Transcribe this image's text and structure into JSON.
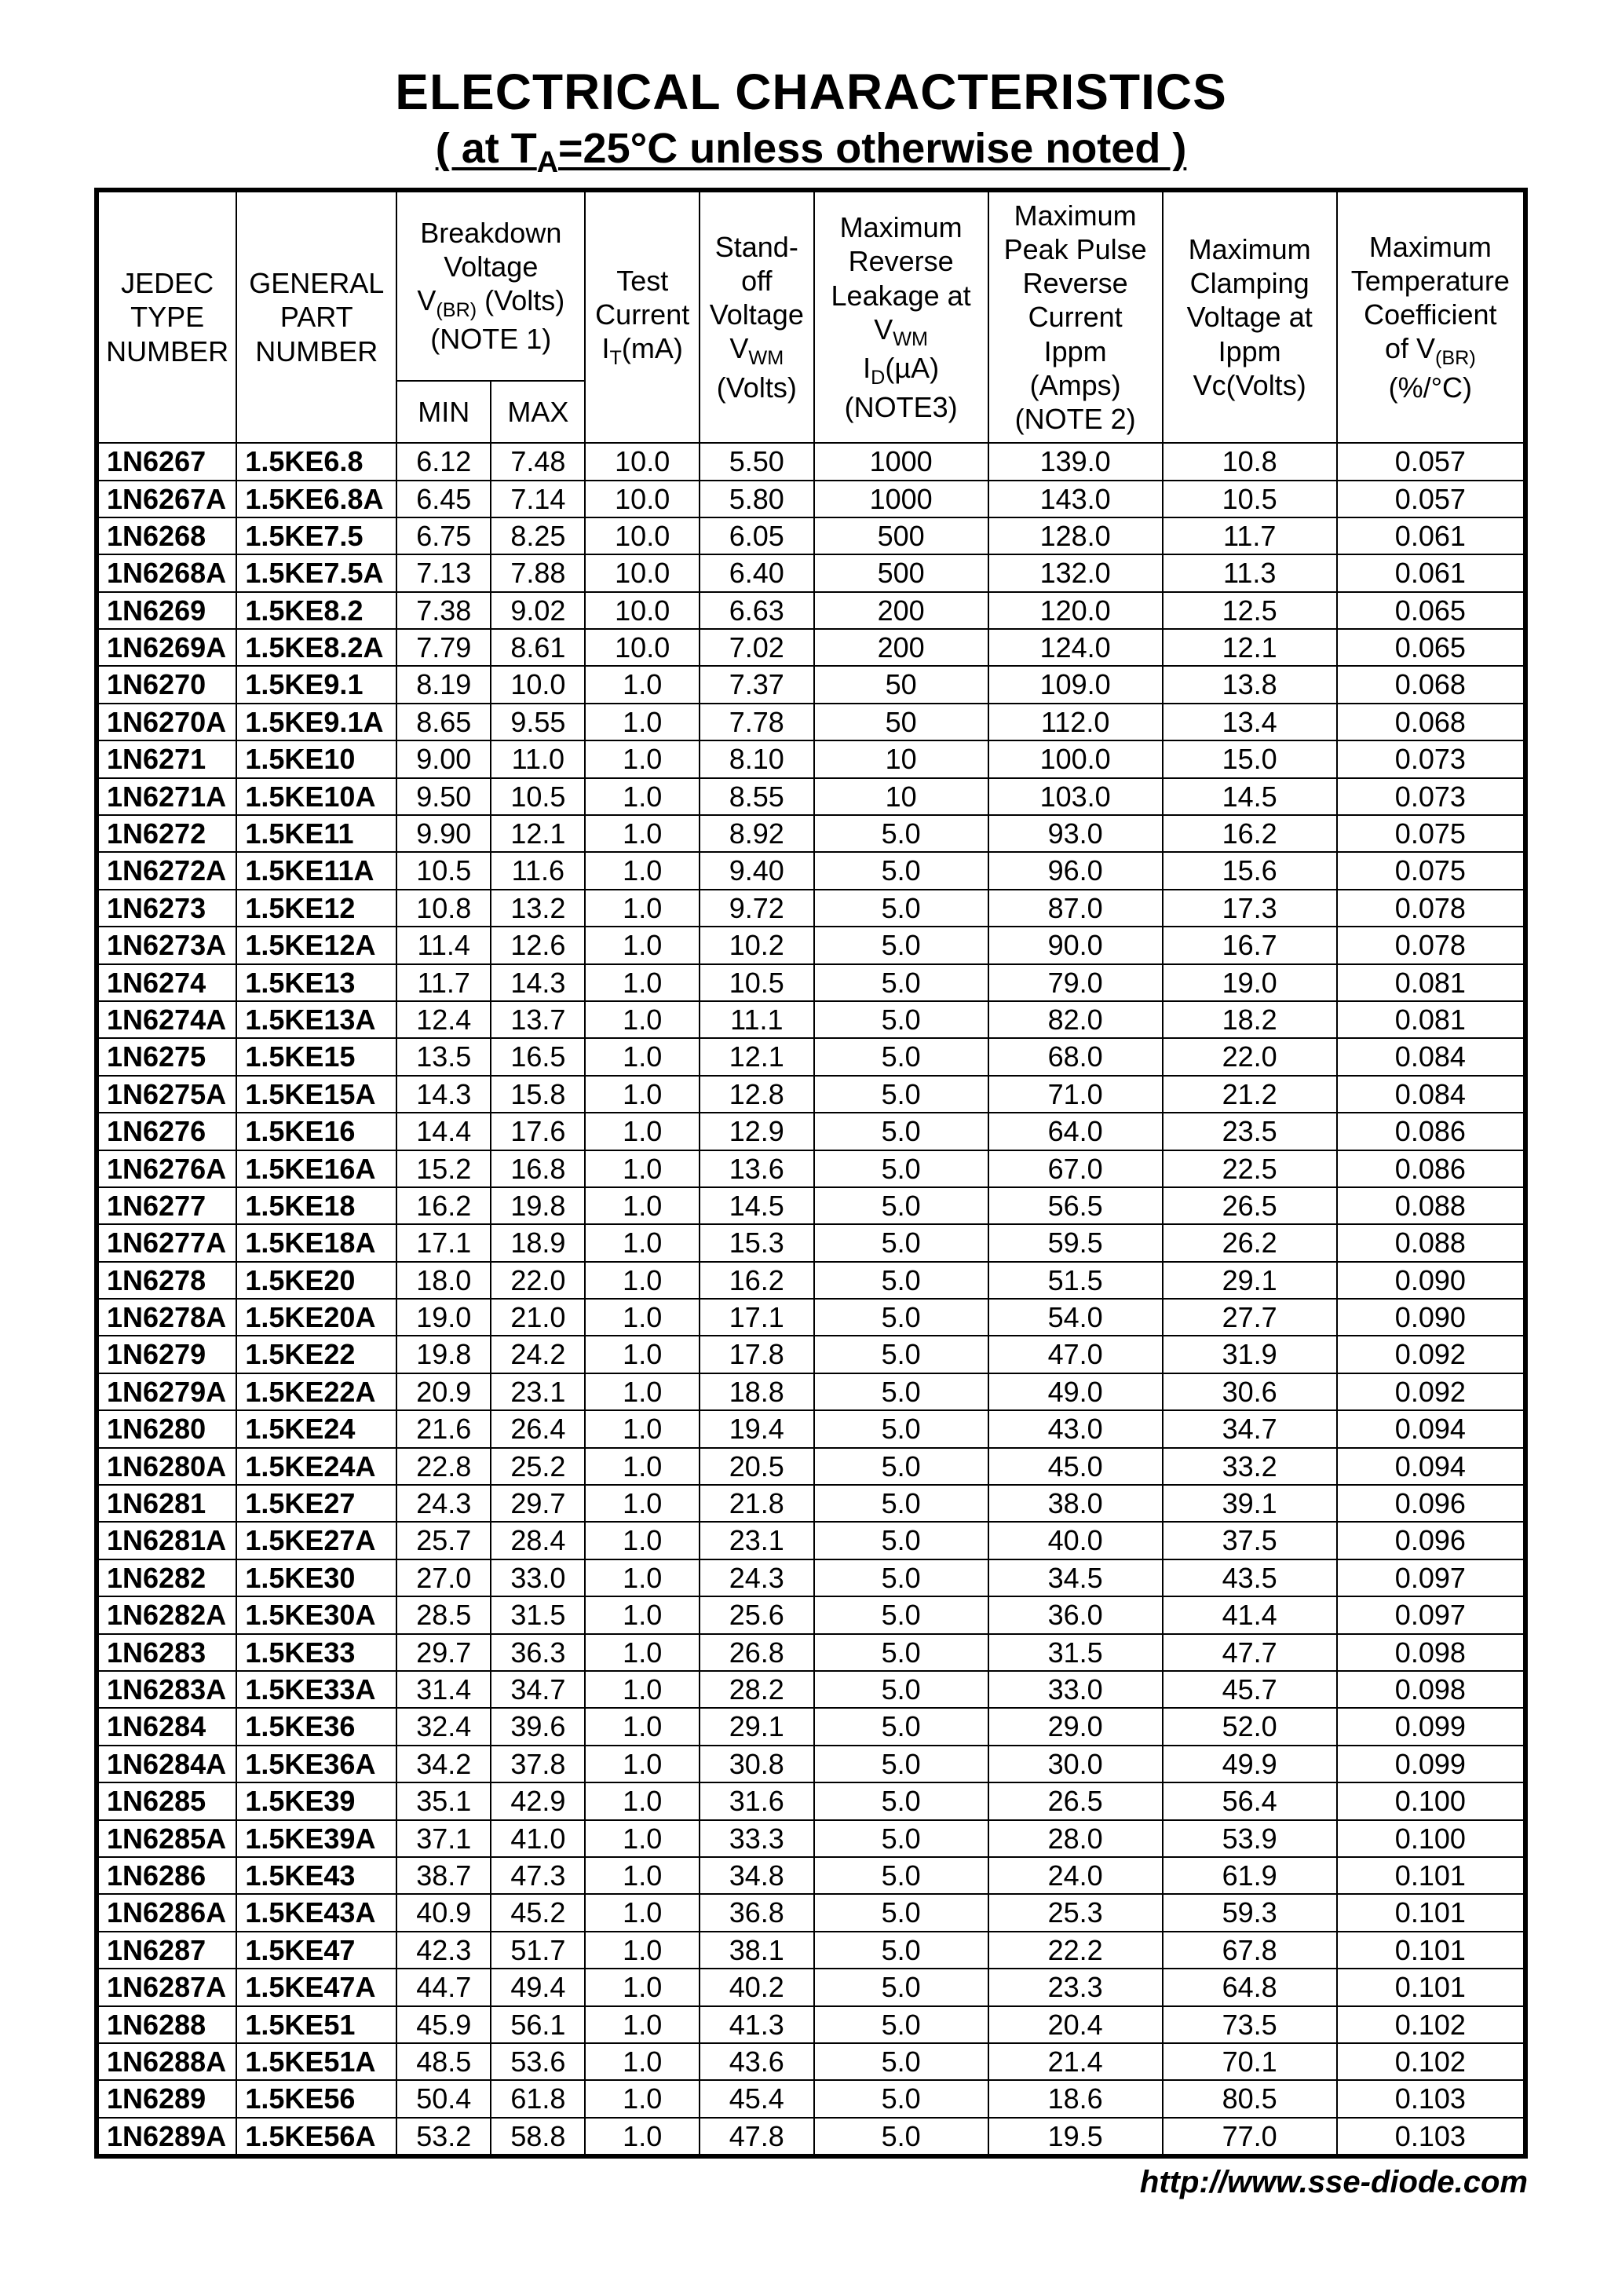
{
  "title": "ELECTRICAL CHARACTERISTICS",
  "subtitle_prefix": "( at T",
  "subtitle_sub": "A",
  "subtitle_rest": "=25°C unless otherwise noted )",
  "footer_url": "http://www.sse-diode.com",
  "headers": {
    "jedec": "JEDEC TYPE NUMBER",
    "general": "GENERAL PART NUMBER",
    "breakdown_top": "Breakdown Voltage",
    "breakdown_mid_pre": "V",
    "breakdown_mid_sub": "(BR)",
    "breakdown_mid_post": " (Volts)",
    "breakdown_note": "(NOTE 1)",
    "min": "MIN",
    "max": "MAX",
    "test_top": "Test Current",
    "test_sym_pre": "I",
    "test_sym_sub": "T",
    "test_sym_post": "(mA)",
    "standoff_top": "Stand- off Voltage",
    "standoff_sym_pre": "V",
    "standoff_sym_sub": "WM",
    "standoff_unit": "(Volts)",
    "leak_top": "Maximum Reverse Leakage at",
    "leak_sym_pre": "V",
    "leak_sym_sub": "WM",
    "leak_mid_pre": "I",
    "leak_mid_sub": "D",
    "leak_mid_post": "(µA)",
    "leak_note": "(NOTE3)",
    "ippm_top": "Maximum Peak Pulse Reverse Current",
    "ippm_l2": "Ippm",
    "ippm_unit": "(Amps)",
    "ippm_note": "(NOTE 2)",
    "clamp_top": "Maximum Clamping Voltage at",
    "clamp_l2": "Ippm",
    "clamp_unit": "Vc(Volts)",
    "temp_top": "Maximum Temperature Coefficient",
    "temp_mid_pre": "of V",
    "temp_mid_sub": "(BR)",
    "temp_unit": "(%/°C)"
  },
  "col_widths_pct": [
    9.8,
    11.2,
    6.6,
    6.6,
    8.0,
    8.0,
    12.2,
    12.2,
    12.2,
    13.2
  ],
  "rows": [
    [
      "1N6267",
      "1.5KE6.8",
      "6.12",
      "7.48",
      "10.0",
      "5.50",
      "1000",
      "139.0",
      "10.8",
      "0.057"
    ],
    [
      "1N6267A",
      "1.5KE6.8A",
      "6.45",
      "7.14",
      "10.0",
      "5.80",
      "1000",
      "143.0",
      "10.5",
      "0.057"
    ],
    [
      "1N6268",
      "1.5KE7.5",
      "6.75",
      "8.25",
      "10.0",
      "6.05",
      "500",
      "128.0",
      "11.7",
      "0.061"
    ],
    [
      "1N6268A",
      "1.5KE7.5A",
      "7.13",
      "7.88",
      "10.0",
      "6.40",
      "500",
      "132.0",
      "11.3",
      "0.061"
    ],
    [
      "1N6269",
      "1.5KE8.2",
      "7.38",
      "9.02",
      "10.0",
      "6.63",
      "200",
      "120.0",
      "12.5",
      "0.065"
    ],
    [
      "1N6269A",
      "1.5KE8.2A",
      "7.79",
      "8.61",
      "10.0",
      "7.02",
      "200",
      "124.0",
      "12.1",
      "0.065"
    ],
    [
      "1N6270",
      "1.5KE9.1",
      "8.19",
      "10.0",
      "1.0",
      "7.37",
      "50",
      "109.0",
      "13.8",
      "0.068"
    ],
    [
      "1N6270A",
      "1.5KE9.1A",
      "8.65",
      "9.55",
      "1.0",
      "7.78",
      "50",
      "112.0",
      "13.4",
      "0.068"
    ],
    [
      "1N6271",
      "1.5KE10",
      "9.00",
      "11.0",
      "1.0",
      "8.10",
      "10",
      "100.0",
      "15.0",
      "0.073"
    ],
    [
      "1N6271A",
      "1.5KE10A",
      "9.50",
      "10.5",
      "1.0",
      "8.55",
      "10",
      "103.0",
      "14.5",
      "0.073"
    ],
    [
      "1N6272",
      "1.5KE11",
      "9.90",
      "12.1",
      "1.0",
      "8.92",
      "5.0",
      "93.0",
      "16.2",
      "0.075"
    ],
    [
      "1N6272A",
      "1.5KE11A",
      "10.5",
      "11.6",
      "1.0",
      "9.40",
      "5.0",
      "96.0",
      "15.6",
      "0.075"
    ],
    [
      "1N6273",
      "1.5KE12",
      "10.8",
      "13.2",
      "1.0",
      "9.72",
      "5.0",
      "87.0",
      "17.3",
      "0.078"
    ],
    [
      "1N6273A",
      "1.5KE12A",
      "11.4",
      "12.6",
      "1.0",
      "10.2",
      "5.0",
      "90.0",
      "16.7",
      "0.078"
    ],
    [
      "1N6274",
      "1.5KE13",
      "11.7",
      "14.3",
      "1.0",
      "10.5",
      "5.0",
      "79.0",
      "19.0",
      "0.081"
    ],
    [
      "1N6274A",
      "1.5KE13A",
      "12.4",
      "13.7",
      "1.0",
      "11.1",
      "5.0",
      "82.0",
      "18.2",
      "0.081"
    ],
    [
      "1N6275",
      "1.5KE15",
      "13.5",
      "16.5",
      "1.0",
      "12.1",
      "5.0",
      "68.0",
      "22.0",
      "0.084"
    ],
    [
      "1N6275A",
      "1.5KE15A",
      "14.3",
      "15.8",
      "1.0",
      "12.8",
      "5.0",
      "71.0",
      "21.2",
      "0.084"
    ],
    [
      "1N6276",
      "1.5KE16",
      "14.4",
      "17.6",
      "1.0",
      "12.9",
      "5.0",
      "64.0",
      "23.5",
      "0.086"
    ],
    [
      "1N6276A",
      "1.5KE16A",
      "15.2",
      "16.8",
      "1.0",
      "13.6",
      "5.0",
      "67.0",
      "22.5",
      "0.086"
    ],
    [
      "1N6277",
      "1.5KE18",
      "16.2",
      "19.8",
      "1.0",
      "14.5",
      "5.0",
      "56.5",
      "26.5",
      "0.088"
    ],
    [
      "1N6277A",
      "1.5KE18A",
      "17.1",
      "18.9",
      "1.0",
      "15.3",
      "5.0",
      "59.5",
      "26.2",
      "0.088"
    ],
    [
      "1N6278",
      "1.5KE20",
      "18.0",
      "22.0",
      "1.0",
      "16.2",
      "5.0",
      "51.5",
      "29.1",
      "0.090"
    ],
    [
      "1N6278A",
      "1.5KE20A",
      "19.0",
      "21.0",
      "1.0",
      "17.1",
      "5.0",
      "54.0",
      "27.7",
      "0.090"
    ],
    [
      "1N6279",
      "1.5KE22",
      "19.8",
      "24.2",
      "1.0",
      "17.8",
      "5.0",
      "47.0",
      "31.9",
      "0.092"
    ],
    [
      "1N6279A",
      "1.5KE22A",
      "20.9",
      "23.1",
      "1.0",
      "18.8",
      "5.0",
      "49.0",
      "30.6",
      "0.092"
    ],
    [
      "1N6280",
      "1.5KE24",
      "21.6",
      "26.4",
      "1.0",
      "19.4",
      "5.0",
      "43.0",
      "34.7",
      "0.094"
    ],
    [
      "1N6280A",
      "1.5KE24A",
      "22.8",
      "25.2",
      "1.0",
      "20.5",
      "5.0",
      "45.0",
      "33.2",
      "0.094"
    ],
    [
      "1N6281",
      "1.5KE27",
      "24.3",
      "29.7",
      "1.0",
      "21.8",
      "5.0",
      "38.0",
      "39.1",
      "0.096"
    ],
    [
      "1N6281A",
      "1.5KE27A",
      "25.7",
      "28.4",
      "1.0",
      "23.1",
      "5.0",
      "40.0",
      "37.5",
      "0.096"
    ],
    [
      "1N6282",
      "1.5KE30",
      "27.0",
      "33.0",
      "1.0",
      "24.3",
      "5.0",
      "34.5",
      "43.5",
      "0.097"
    ],
    [
      "1N6282A",
      "1.5KE30A",
      "28.5",
      "31.5",
      "1.0",
      "25.6",
      "5.0",
      "36.0",
      "41.4",
      "0.097"
    ],
    [
      "1N6283",
      "1.5KE33",
      "29.7",
      "36.3",
      "1.0",
      "26.8",
      "5.0",
      "31.5",
      "47.7",
      "0.098"
    ],
    [
      "1N6283A",
      "1.5KE33A",
      "31.4",
      "34.7",
      "1.0",
      "28.2",
      "5.0",
      "33.0",
      "45.7",
      "0.098"
    ],
    [
      "1N6284",
      "1.5KE36",
      "32.4",
      "39.6",
      "1.0",
      "29.1",
      "5.0",
      "29.0",
      "52.0",
      "0.099"
    ],
    [
      "1N6284A",
      "1.5KE36A",
      "34.2",
      "37.8",
      "1.0",
      "30.8",
      "5.0",
      "30.0",
      "49.9",
      "0.099"
    ],
    [
      "1N6285",
      "1.5KE39",
      "35.1",
      "42.9",
      "1.0",
      "31.6",
      "5.0",
      "26.5",
      "56.4",
      "0.100"
    ],
    [
      "1N6285A",
      "1.5KE39A",
      "37.1",
      "41.0",
      "1.0",
      "33.3",
      "5.0",
      "28.0",
      "53.9",
      "0.100"
    ],
    [
      "1N6286",
      "1.5KE43",
      "38.7",
      "47.3",
      "1.0",
      "34.8",
      "5.0",
      "24.0",
      "61.9",
      "0.101"
    ],
    [
      "1N6286A",
      "1.5KE43A",
      "40.9",
      "45.2",
      "1.0",
      "36.8",
      "5.0",
      "25.3",
      "59.3",
      "0.101"
    ],
    [
      "1N6287",
      "1.5KE47",
      "42.3",
      "51.7",
      "1.0",
      "38.1",
      "5.0",
      "22.2",
      "67.8",
      "0.101"
    ],
    [
      "1N6287A",
      "1.5KE47A",
      "44.7",
      "49.4",
      "1.0",
      "40.2",
      "5.0",
      "23.3",
      "64.8",
      "0.101"
    ],
    [
      "1N6288",
      "1.5KE51",
      "45.9",
      "56.1",
      "1.0",
      "41.3",
      "5.0",
      "20.4",
      "73.5",
      "0.102"
    ],
    [
      "1N6288A",
      "1.5KE51A",
      "48.5",
      "53.6",
      "1.0",
      "43.6",
      "5.0",
      "21.4",
      "70.1",
      "0.102"
    ],
    [
      "1N6289",
      "1.5KE56",
      "50.4",
      "61.8",
      "1.0",
      "45.4",
      "5.0",
      "18.6",
      "80.5",
      "0.103"
    ],
    [
      "1N6289A",
      "1.5KE56A",
      "53.2",
      "58.8",
      "1.0",
      "47.8",
      "5.0",
      "19.5",
      "77.0",
      "0.103"
    ]
  ]
}
